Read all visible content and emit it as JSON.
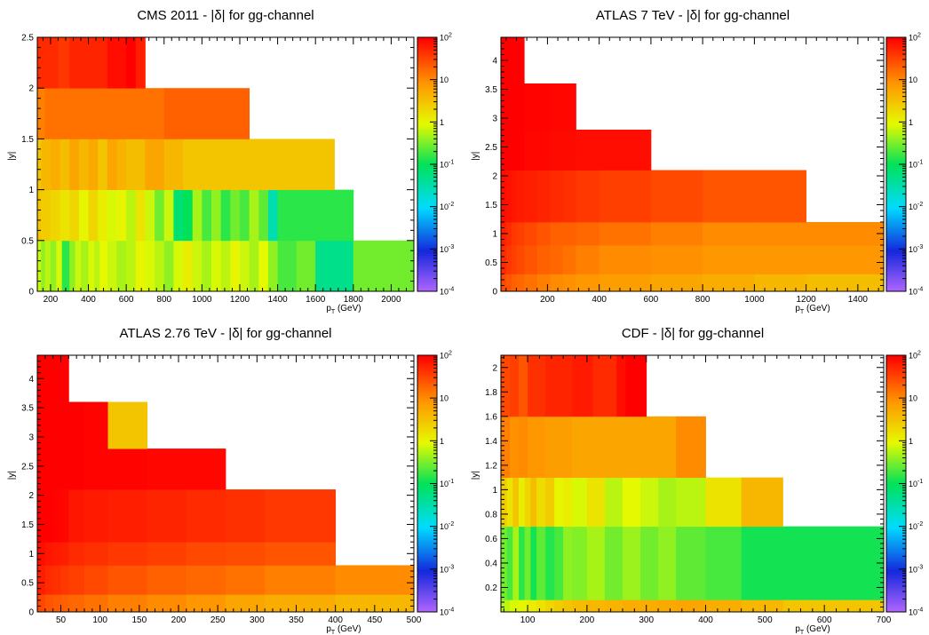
{
  "chart_data": [
    {
      "type": "heatmap",
      "title": "CMS 2011 - |δ| for gg-channel",
      "xlabel": "p_T (GeV)",
      "ylabel": "|y|",
      "xlim": [
        130,
        2120
      ],
      "ylim": [
        0,
        2.5
      ],
      "xticks": [
        200,
        400,
        600,
        800,
        1000,
        1200,
        1400,
        1600,
        1800,
        2000
      ],
      "yticks": [
        0,
        0.5,
        1,
        1.5,
        2,
        2.5
      ],
      "colorbar": {
        "scale": "log",
        "min": 0.0001,
        "max": 100,
        "ticks": [
          "10^-4",
          "10^-3",
          "10^-2",
          "10^-1",
          "1",
          "10",
          "10^2"
        ]
      },
      "rows": [
        {
          "y": [
            0,
            0.5
          ],
          "x": [
            130,
            150,
            170,
            200,
            230,
            260,
            300,
            330,
            360,
            400,
            430,
            460,
            500,
            550,
            600,
            650,
            700,
            750,
            800,
            850,
            900,
            950,
            1000,
            1050,
            1100,
            1150,
            1200,
            1250,
            1300,
            1350,
            1400,
            1500,
            1600,
            1800,
            2120
          ],
          "z": [
            0.7,
            0.4,
            0.6,
            0.4,
            0.8,
            0.15,
            0.4,
            0.7,
            0.5,
            0.8,
            0.6,
            0.9,
            0.7,
            0.5,
            0.6,
            1.0,
            0.8,
            0.6,
            0.4,
            0.8,
            1.2,
            0.7,
            0.5,
            0.8,
            0.6,
            1.0,
            0.7,
            0.5,
            0.9,
            0.4,
            0.2,
            0.3,
            0.05,
            0.3
          ]
        },
        {
          "y": [
            0.5,
            1.0
          ],
          "x": [
            130,
            150,
            200,
            250,
            300,
            350,
            400,
            450,
            500,
            550,
            600,
            650,
            700,
            750,
            800,
            850,
            900,
            950,
            1000,
            1050,
            1100,
            1150,
            1200,
            1250,
            1300,
            1350,
            1400,
            1500,
            1800
          ],
          "z": [
            3.0,
            2.5,
            2.0,
            1.5,
            2.0,
            1.0,
            2.0,
            1.2,
            0.8,
            1.0,
            0.6,
            1.5,
            0.7,
            0.3,
            0.7,
            0.07,
            0.1,
            0.5,
            0.2,
            0.4,
            0.15,
            0.3,
            0.2,
            0.5,
            0.25,
            0.03,
            0.15,
            0.15
          ]
        },
        {
          "y": [
            1.0,
            1.5
          ],
          "x": [
            130,
            150,
            200,
            250,
            300,
            350,
            400,
            450,
            500,
            550,
            600,
            700,
            800,
            900,
            1700
          ],
          "z": [
            3.0,
            4.0,
            5.0,
            3.5,
            6.0,
            4.0,
            5.5,
            3.0,
            6.0,
            4.5,
            3.5,
            6.0,
            4.0,
            3.0
          ]
        },
        {
          "y": [
            1.5,
            2.0
          ],
          "x": [
            130,
            170,
            800,
            1250
          ],
          "z": [
            12,
            15,
            20
          ]
        },
        {
          "y": [
            2.0,
            2.5
          ],
          "x": [
            130,
            240,
            300,
            500,
            600,
            650,
            700,
            900
          ],
          "z": [
            50,
            40,
            55,
            80,
            100,
            60
          ]
        }
      ]
    },
    {
      "type": "heatmap",
      "title": "ATLAS 7 TeV - |δ| for gg-channel",
      "xlabel": "p_T (GeV)",
      "ylabel": "|y|",
      "xlim": [
        20,
        1500
      ],
      "ylim": [
        0,
        4.4
      ],
      "xticks": [
        200,
        400,
        600,
        800,
        1000,
        1200,
        1400
      ],
      "yticks": [
        0,
        0.5,
        1,
        1.5,
        2,
        2.5,
        3,
        3.5,
        4
      ],
      "colorbar": {
        "scale": "log",
        "min": 0.0001,
        "max": 100,
        "ticks": [
          "10^-4",
          "10^-3",
          "10^-2",
          "10^-1",
          "1",
          "10",
          "10^2"
        ]
      },
      "rows": [
        {
          "y": [
            0,
            0.3
          ],
          "x": [
            20,
            40,
            60,
            80,
            110,
            160,
            210,
            260,
            310,
            400,
            600,
            800,
            1000,
            1200,
            1500
          ],
          "z": [
            30,
            25,
            20,
            18,
            15,
            12,
            10,
            9,
            8,
            7,
            6,
            5,
            4,
            3.5
          ]
        },
        {
          "y": [
            0.3,
            0.8
          ],
          "x": [
            20,
            40,
            60,
            80,
            110,
            160,
            210,
            260,
            310,
            400,
            600,
            800,
            1000,
            1200,
            1500
          ],
          "z": [
            50,
            40,
            35,
            30,
            25,
            20,
            18,
            15,
            12,
            10,
            9,
            8,
            8,
            8
          ]
        },
        {
          "y": [
            0.8,
            1.2
          ],
          "x": [
            20,
            40,
            60,
            80,
            110,
            160,
            210,
            260,
            310,
            400,
            600,
            800,
            1000,
            1200,
            1500
          ],
          "z": [
            60,
            50,
            40,
            35,
            30,
            25,
            20,
            20,
            18,
            15,
            12,
            10,
            10,
            10
          ]
        },
        {
          "y": [
            1.2,
            2.1
          ],
          "x": [
            20,
            40,
            60,
            80,
            110,
            160,
            210,
            260,
            310,
            400,
            600,
            800,
            1200
          ],
          "z": [
            80,
            75,
            70,
            65,
            60,
            55,
            50,
            45,
            40,
            35,
            30,
            25
          ]
        },
        {
          "y": [
            2.1,
            2.8
          ],
          "x": [
            20,
            60,
            110,
            160,
            210,
            260,
            310,
            400,
            600
          ],
          "z": [
            100,
            100,
            90,
            90,
            85,
            85,
            80,
            80
          ]
        },
        {
          "y": [
            2.8,
            3.6
          ],
          "x": [
            20,
            60,
            110,
            160,
            210,
            260,
            310
          ],
          "z": [
            100,
            100,
            95,
            95,
            90,
            90
          ]
        },
        {
          "y": [
            3.6,
            4.4
          ],
          "x": [
            20,
            60,
            110
          ],
          "z": [
            100,
            100
          ]
        }
      ]
    },
    {
      "type": "heatmap",
      "title": "ATLAS 2.76 TeV - |δ| for gg-channel",
      "xlabel": "p_T (GeV)",
      "ylabel": "|y|",
      "xlim": [
        20,
        500
      ],
      "ylim": [
        0,
        4.4
      ],
      "xticks": [
        50,
        100,
        150,
        200,
        250,
        300,
        350,
        400,
        450,
        500
      ],
      "yticks": [
        0,
        0.5,
        1,
        1.5,
        2,
        2.5,
        3,
        3.5,
        4
      ],
      "colorbar": {
        "scale": "log",
        "min": 0.0001,
        "max": 100,
        "ticks": [
          "10^-4",
          "10^-3",
          "10^-2",
          "10^-1",
          "1",
          "10",
          "10^2"
        ]
      },
      "rows": [
        {
          "y": [
            0,
            0.3
          ],
          "x": [
            20,
            30,
            40,
            50,
            60,
            80,
            110,
            160,
            210,
            260,
            310,
            400,
            500
          ],
          "z": [
            30,
            25,
            22,
            20,
            18,
            15,
            12,
            10,
            8,
            6,
            5,
            4
          ]
        },
        {
          "y": [
            0.3,
            0.8
          ],
          "x": [
            20,
            30,
            40,
            50,
            60,
            80,
            110,
            160,
            210,
            260,
            310,
            400,
            500
          ],
          "z": [
            60,
            50,
            45,
            40,
            35,
            30,
            25,
            20,
            18,
            15,
            12,
            10
          ]
        },
        {
          "y": [
            0.8,
            1.2
          ],
          "x": [
            20,
            30,
            40,
            50,
            60,
            80,
            110,
            160,
            210,
            260,
            310,
            400
          ],
          "z": [
            80,
            70,
            65,
            60,
            50,
            45,
            40,
            35,
            30,
            28,
            25
          ]
        },
        {
          "y": [
            1.2,
            2.1
          ],
          "x": [
            20,
            30,
            40,
            50,
            60,
            80,
            110,
            160,
            210,
            260,
            310,
            400
          ],
          "z": [
            100,
            100,
            95,
            90,
            70,
            65,
            60,
            55,
            50,
            45,
            40
          ]
        },
        {
          "y": [
            2.1,
            2.8
          ],
          "x": [
            20,
            40,
            60,
            80,
            110,
            160,
            210,
            260
          ],
          "z": [
            100,
            100,
            100,
            95,
            95,
            90,
            90
          ]
        },
        {
          "y": [
            2.8,
            3.6
          ],
          "x": [
            20,
            40,
            60,
            80,
            110,
            160
          ],
          "z": [
            100,
            100,
            100,
            95,
            3
          ]
        },
        {
          "y": [
            3.6,
            4.4
          ],
          "x": [
            20,
            40,
            60
          ],
          "z": [
            100,
            100
          ]
        }
      ]
    },
    {
      "type": "heatmap",
      "title": "CDF - |δ| for gg-channel",
      "xlabel": "p_T (GeV)",
      "ylabel": "|y|",
      "xlim": [
        55,
        700
      ],
      "ylim": [
        0,
        2.1
      ],
      "xticks": [
        100,
        200,
        300,
        400,
        500,
        600,
        700
      ],
      "yticks": [
        0.2,
        0.4,
        0.6,
        0.8,
        1,
        1.2,
        1.4,
        1.6,
        1.8,
        2
      ],
      "colorbar": {
        "scale": "log",
        "min": 0.0001,
        "max": 100,
        "ticks": [
          "10^-4",
          "10^-3",
          "10^-2",
          "10^-1",
          "1",
          "10",
          "10^2"
        ]
      },
      "rows": [
        {
          "y": [
            0,
            0.1
          ],
          "x": [
            55,
            70,
            85,
            100,
            115,
            130,
            145,
            160,
            175,
            200,
            230,
            260,
            290,
            320,
            350,
            400,
            460,
            530,
            700
          ],
          "z": [
            0.6,
            0.8,
            1.0,
            1.2,
            1.5,
            2.0,
            2.5,
            3.0,
            3.5,
            4.0,
            4.5,
            5.0,
            5.0,
            5.5,
            6.0,
            5.0,
            4.0,
            3.0
          ]
        },
        {
          "y": [
            0.1,
            0.7
          ],
          "x": [
            55,
            65,
            75,
            85,
            95,
            105,
            115,
            130,
            145,
            160,
            175,
            200,
            230,
            260,
            290,
            320,
            350,
            400,
            460,
            700
          ],
          "z": [
            0.3,
            0.2,
            0.5,
            0.15,
            0.3,
            0.12,
            0.25,
            0.14,
            0.2,
            0.4,
            0.35,
            0.5,
            0.3,
            0.45,
            0.3,
            0.4,
            0.25,
            0.2,
            0.12
          ]
        },
        {
          "y": [
            0.7,
            1.1
          ],
          "x": [
            55,
            65,
            75,
            85,
            95,
            105,
            115,
            130,
            145,
            160,
            175,
            200,
            230,
            260,
            290,
            320,
            350,
            400,
            460,
            530
          ],
          "z": [
            2.5,
            1.5,
            3.0,
            1.2,
            2.0,
            3.5,
            1.8,
            2.5,
            1.0,
            1.2,
            0.8,
            1.5,
            0.6,
            0.9,
            0.7,
            0.5,
            0.6,
            1.5,
            4.0
          ]
        },
        {
          "y": [
            1.1,
            1.6
          ],
          "x": [
            55,
            70,
            85,
            100,
            130,
            175,
            260,
            350,
            400
          ],
          "z": [
            12,
            9,
            10,
            8,
            7,
            6,
            6,
            10
          ]
        },
        {
          "y": [
            1.6,
            2.1
          ],
          "x": [
            55,
            70,
            85,
            100,
            130,
            175,
            210,
            250,
            265,
            300
          ],
          "z": [
            30,
            35,
            25,
            45,
            55,
            65,
            50,
            80,
            100
          ]
        }
      ]
    }
  ]
}
